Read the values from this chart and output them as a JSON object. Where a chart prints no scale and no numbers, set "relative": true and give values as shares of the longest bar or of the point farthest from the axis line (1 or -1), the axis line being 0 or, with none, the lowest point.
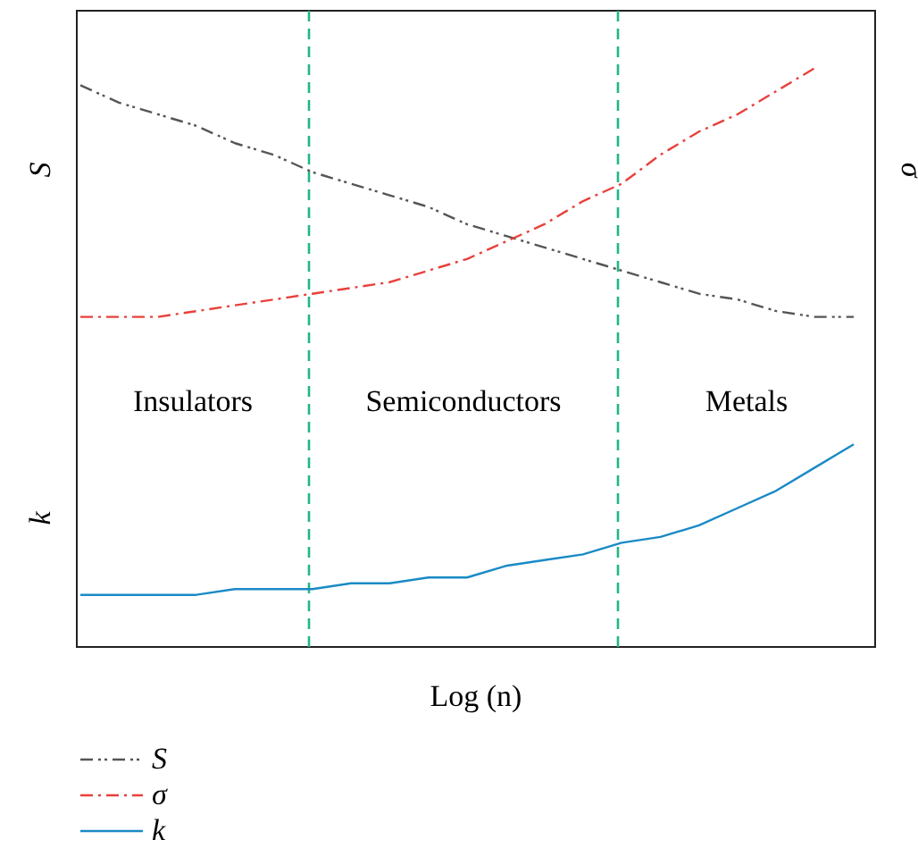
{
  "chart_data": {
    "type": "line",
    "relative": true,
    "xlabel": "Log (n)",
    "ylabel": "S",
    "y2label": "σ",
    "legend": "bottom left",
    "categories": [
      null,
      null,
      null,
      null,
      null,
      null,
      null,
      null,
      null,
      null,
      null,
      null,
      null,
      null,
      null,
      null,
      null,
      null,
      null,
      null,
      null
    ],
    "series": [
      {
        "name": "S",
        "color": "#555555",
        "line_style": "dotted",
        "values": [
          0.97,
          0.94,
          0.92,
          0.9,
          0.87,
          0.85,
          0.82,
          0.8,
          0.78,
          0.76,
          0.73,
          0.71,
          0.69,
          0.67,
          0.65,
          0.63,
          0.61,
          0.6,
          0.58,
          0.57,
          0.57
        ]
      },
      {
        "name": "σ",
        "color": "#e8413c",
        "line_style": "dashed",
        "values": [
          0.57,
          0.57,
          0.57,
          0.58,
          0.59,
          0.6,
          0.61,
          0.62,
          0.63,
          0.65,
          0.67,
          0.7,
          0.73,
          0.77,
          0.8,
          0.85,
          0.89,
          0.92,
          0.96,
          1,
          null
        ]
      },
      {
        "name": "k",
        "color": "#1a8ac6",
        "line_style": "solid",
        "values": [
          0.09,
          0.09,
          0.09,
          0.09,
          0.1,
          0.1,
          0.1,
          0.11,
          0.11,
          0.12,
          0.12,
          0.14,
          0.15,
          0.16,
          0.18,
          0.19,
          0.21,
          0.24,
          0.27,
          0.31,
          0.35
        ]
      }
    ],
    "annotations": [
      "Insulators",
      "Semiconductors",
      "Metals",
      "k"
    ]
  }
}
